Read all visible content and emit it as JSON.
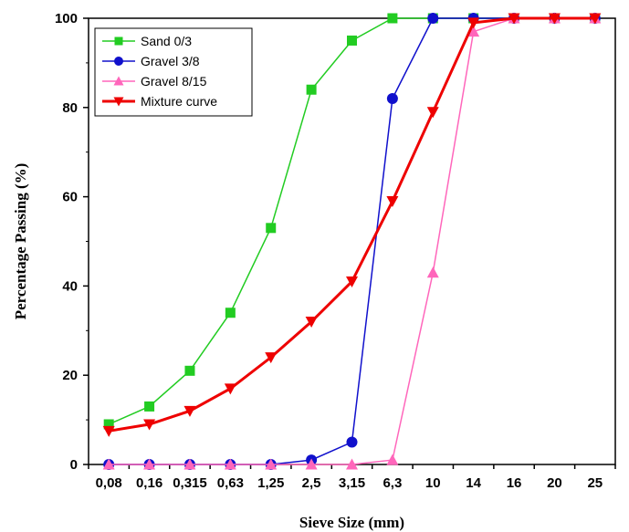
{
  "chart_data": {
    "type": "line",
    "xlabel": "Sieve Size (mm)",
    "ylabel": "Percentage Passing (%)",
    "categories": [
      "0,08",
      "0,16",
      "0,315",
      "0,63",
      "1,25",
      "2,5",
      "3,15",
      "6,3",
      "10",
      "14",
      "16",
      "20",
      "25"
    ],
    "ylim": [
      0,
      100
    ],
    "yticks": [
      0,
      20,
      40,
      60,
      80,
      100
    ],
    "legend_position": "top-left",
    "grid": false,
    "series": [
      {
        "name": "Sand 0/3",
        "color": "#22cc22",
        "marker": "square",
        "values": [
          9,
          13,
          21,
          34,
          53,
          84,
          95,
          100,
          100,
          100,
          100,
          100,
          100
        ]
      },
      {
        "name": "Gravel 3/8",
        "color": "#1010cc",
        "marker": "circle",
        "values": [
          0,
          0,
          0,
          0,
          0,
          1,
          5,
          82,
          100,
          100,
          100,
          100,
          100
        ]
      },
      {
        "name": "Gravel 8/15",
        "color": "#ff66bb",
        "marker": "triangle-up",
        "values": [
          0,
          0,
          0,
          0,
          0,
          0,
          0,
          1,
          43,
          97,
          100,
          100,
          100
        ]
      },
      {
        "name": "Mixture curve",
        "color": "#ee0000",
        "marker": "triangle-down",
        "values": [
          7.5,
          9,
          12,
          17,
          24,
          32,
          41,
          59,
          79,
          99,
          100,
          100,
          100
        ]
      }
    ]
  }
}
